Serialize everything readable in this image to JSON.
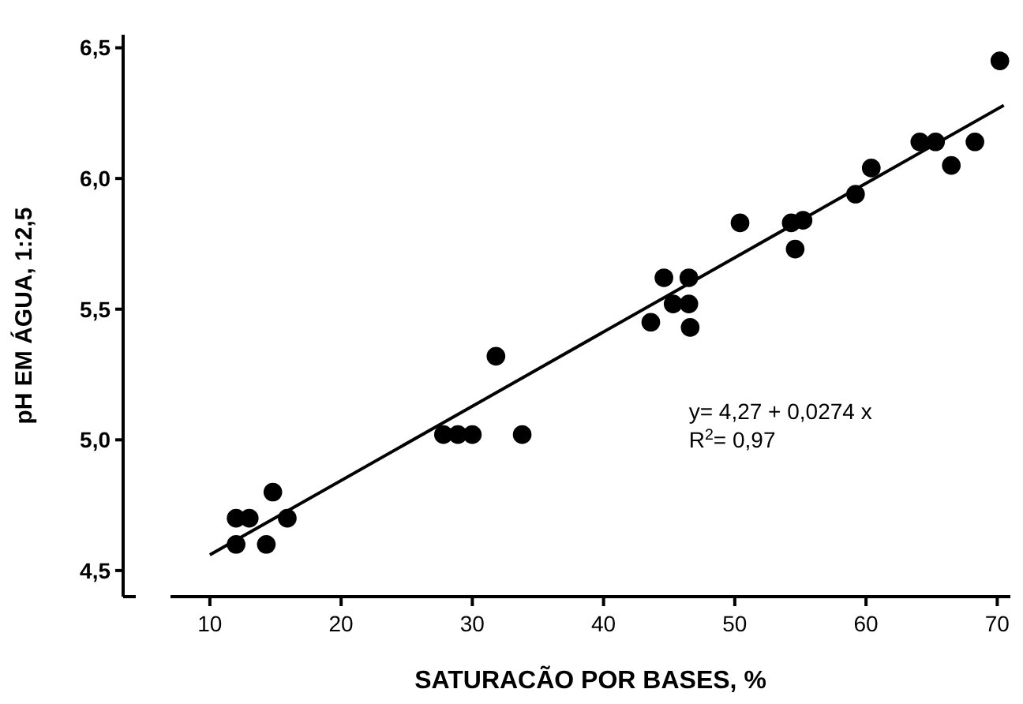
{
  "chart_data": {
    "type": "scatter",
    "xlabel": "SATURACÃO POR BASES, %",
    "ylabel": "pH EM ÁGUA, 1:2,5",
    "xlim": [
      7,
      71
    ],
    "ylim": [
      4.4,
      6.55
    ],
    "xticks": [
      10,
      20,
      30,
      40,
      50,
      60,
      70
    ],
    "yticks": [
      {
        "value": 4.5,
        "label": "4,5"
      },
      {
        "value": 5,
        "label": "5,0"
      },
      {
        "value": 5.5,
        "label": "5,5"
      },
      {
        "value": 6,
        "label": "6,0"
      },
      {
        "value": 6.5,
        "label": "6,5"
      }
    ],
    "grid": false,
    "marker": "circle",
    "annotations": [
      "y= 4,27 + 0,0274 x",
      "R$^{2}$= 0,97"
    ],
    "series": [
      {
        "type": "scatter",
        "color": "#000000",
        "x": [
          12,
          12,
          13,
          14.3,
          14.8,
          15.9,
          27.8,
          28.9,
          30,
          31.8,
          33.8,
          43.6,
          44.6,
          45.3,
          46.5,
          46.5,
          46.6,
          50.4,
          54.3,
          54.6,
          55.2,
          59.2,
          60.4,
          64.1,
          65.3,
          66.5,
          68.3,
          70.2
        ],
        "values": [
          4.6,
          4.7,
          4.7,
          4.6,
          4.8,
          4.7,
          5.02,
          5.02,
          5.02,
          5.32,
          5.02,
          5.45,
          5.62,
          5.52,
          5.52,
          5.62,
          5.43,
          5.83,
          5.83,
          5.73,
          5.84,
          5.94,
          6.04,
          6.14,
          6.14,
          6.05,
          6.14,
          6.45
        ]
      },
      {
        "type": "line",
        "marker": "none",
        "color": "#000000",
        "x": [
          10,
          70.5
        ],
        "values": [
          4.56,
          6.28
        ]
      }
    ]
  }
}
